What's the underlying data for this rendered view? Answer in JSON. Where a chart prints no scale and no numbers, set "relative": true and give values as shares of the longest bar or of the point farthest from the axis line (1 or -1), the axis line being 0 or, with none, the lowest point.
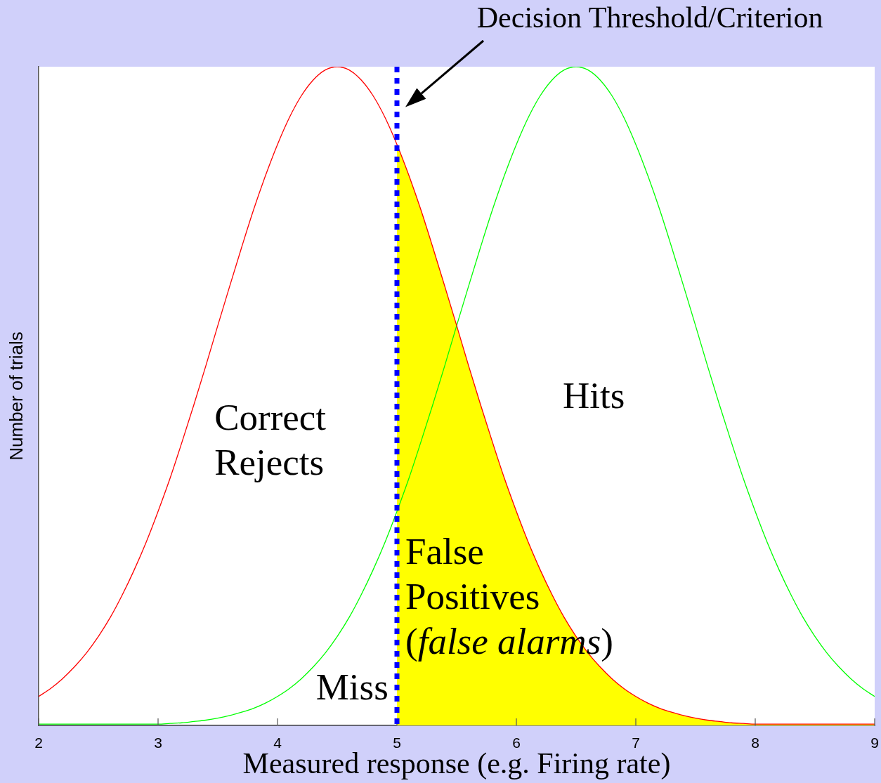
{
  "chart_data": {
    "type": "line",
    "xlabel": "Measured response (e.g. Firing rate)",
    "ylabel": "Number of trials",
    "relative": true,
    "tick_labels": "x",
    "xlim": [
      2,
      9
    ],
    "xticks": [
      2,
      3,
      4,
      5,
      6,
      7,
      8,
      9
    ],
    "x": [
      2,
      2.1,
      2.2,
      2.3,
      2.4,
      2.5,
      2.6,
      2.7,
      2.8,
      2.9,
      3,
      3.1,
      3.2,
      3.3,
      3.4,
      3.5,
      3.6,
      3.7,
      3.8,
      3.9,
      4,
      4.1,
      4.2,
      4.3,
      4.4,
      4.5,
      4.6,
      4.7,
      4.8,
      4.9,
      5,
      5.1,
      5.2,
      5.3,
      5.4,
      5.5,
      5.6,
      5.7,
      5.8,
      5.9,
      6,
      6.1,
      6.2,
      6.3,
      6.4,
      6.5,
      6.6,
      6.7,
      6.8,
      6.9,
      7,
      7.1,
      7.2,
      7.3,
      7.4,
      7.5,
      7.6,
      7.7,
      7.8,
      7.9,
      8,
      8.1,
      8.2,
      8.3,
      8.4,
      8.5,
      8.6,
      8.7,
      8.8,
      8.9,
      9
    ],
    "series": [
      {
        "color": "#ff0000",
        "values": [
          0.044,
          0.056,
          0.071,
          0.089,
          0.11,
          0.135,
          0.164,
          0.198,
          0.236,
          0.278,
          0.325,
          0.375,
          0.43,
          0.487,
          0.546,
          0.607,
          0.667,
          0.726,
          0.783,
          0.835,
          0.882,
          0.923,
          0.956,
          0.98,
          0.995,
          1,
          0.995,
          0.98,
          0.956,
          0.923,
          0.882,
          0.835,
          0.783,
          0.726,
          0.667,
          0.607,
          0.546,
          0.487,
          0.43,
          0.375,
          0.325,
          0.278,
          0.236,
          0.198,
          0.164,
          0.135,
          0.11,
          0.089,
          0.071,
          0.056,
          0.044,
          0.034,
          0.026,
          0.02,
          0.015,
          0.011,
          0.008,
          0.006,
          0.004,
          0.003,
          0.002,
          0.002,
          0.002,
          0.002,
          0.002,
          0.002,
          0.002,
          0.002,
          0.002,
          0.002,
          0.002
        ]
      },
      {
        "color": "#00ff00",
        "values": [
          0.002,
          0.002,
          0.002,
          0.002,
          0.002,
          0.002,
          0.002,
          0.002,
          0.002,
          0.002,
          0.002,
          0.003,
          0.004,
          0.006,
          0.008,
          0.011,
          0.015,
          0.02,
          0.026,
          0.034,
          0.044,
          0.056,
          0.071,
          0.089,
          0.11,
          0.135,
          0.164,
          0.198,
          0.236,
          0.278,
          0.325,
          0.375,
          0.43,
          0.487,
          0.546,
          0.607,
          0.667,
          0.726,
          0.783,
          0.835,
          0.882,
          0.923,
          0.956,
          0.98,
          0.995,
          1,
          0.995,
          0.98,
          0.956,
          0.923,
          0.882,
          0.835,
          0.783,
          0.726,
          0.667,
          0.607,
          0.546,
          0.487,
          0.43,
          0.375,
          0.325,
          0.278,
          0.236,
          0.198,
          0.164,
          0.135,
          0.11,
          0.089,
          0.071,
          0.056,
          0.044
        ]
      },
      {
        "type": "area",
        "color": "#ffff00",
        "x": [
          5,
          5.1,
          5.2,
          5.3,
          5.4,
          5.5,
          5.6,
          5.7,
          5.8,
          5.9,
          6,
          6.1,
          6.2,
          6.3,
          6.4,
          6.5,
          6.6,
          6.7,
          6.8,
          6.9,
          7,
          7.1,
          7.2,
          7.3,
          7.4,
          7.5,
          7.6,
          7.7,
          7.8,
          7.9,
          8,
          8.1,
          8.2,
          8.3,
          8.4,
          8.5,
          8.6,
          8.7,
          8.8,
          8.9,
          9
        ],
        "values": [
          0.882,
          0.835,
          0.783,
          0.726,
          0.667,
          0.607,
          0.546,
          0.487,
          0.43,
          0.375,
          0.325,
          0.278,
          0.236,
          0.198,
          0.164,
          0.135,
          0.11,
          0.089,
          0.071,
          0.056,
          0.044,
          0.034,
          0.026,
          0.02,
          0.015,
          0.011,
          0.008,
          0.006,
          0.004,
          0.003,
          0.002,
          0.002,
          0.002,
          0.002,
          0.002,
          0.002,
          0.002,
          0.002,
          0.002,
          0.002,
          0.002
        ]
      }
    ],
    "ref_lines": [
      {
        "axis": "x",
        "value": 5,
        "color": "#0000ff",
        "line_style": "dotted"
      }
    ],
    "annotations": [
      "Decision Threshold/Criterion",
      "Correct Rejects",
      "Hits",
      "False Positives (false alarms)",
      "Miss"
    ]
  }
}
